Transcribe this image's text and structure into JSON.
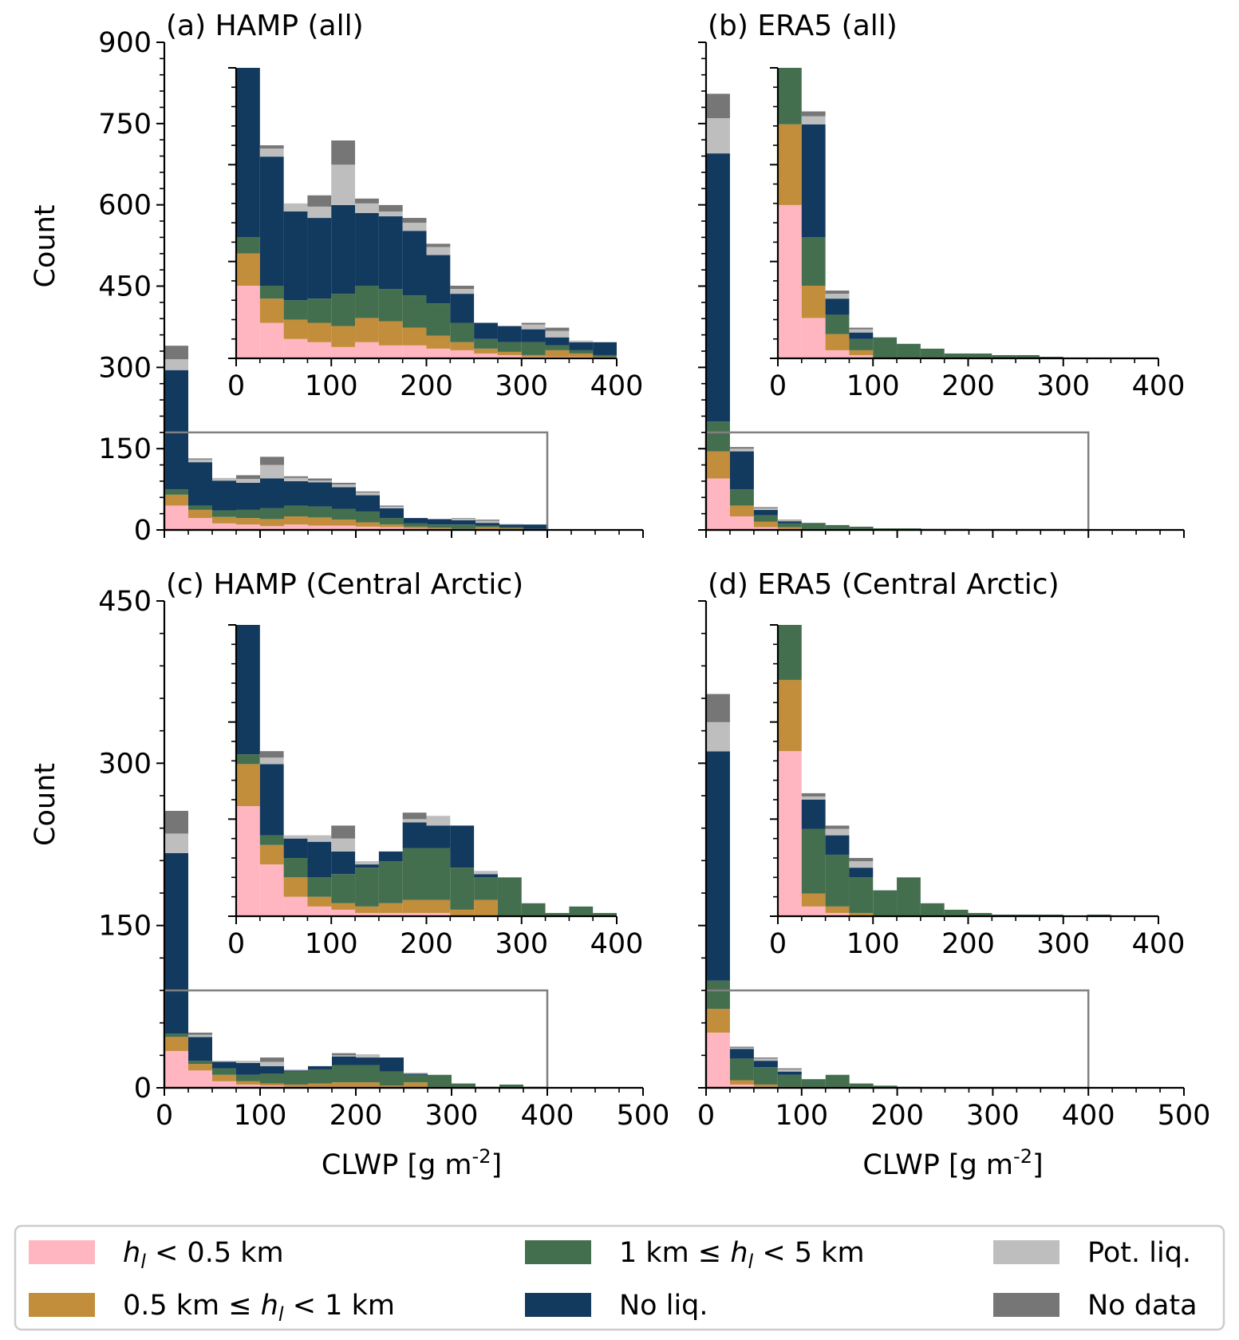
{
  "colors": {
    "c0": "#FFB6C1",
    "c1": "#C28E3C",
    "c2": "#446F4E",
    "c3": "#12395E",
    "c4": "#BEBEBE",
    "c5": "#767676",
    "zoom_box": "#808080"
  },
  "legend": {
    "entries": [
      {
        "key": "c0",
        "parts": [
          {
            "t": "h",
            "i": true
          },
          {
            "t": "l",
            "sub": true,
            "i": true
          },
          {
            "t": " < 0.5 km"
          }
        ]
      },
      {
        "key": "c1",
        "parts": [
          {
            "t": "0.5 km ≤ "
          },
          {
            "t": "h",
            "i": true
          },
          {
            "t": "l",
            "sub": true,
            "i": true
          },
          {
            "t": " < 1 km"
          }
        ]
      },
      {
        "key": "c2",
        "parts": [
          {
            "t": "1 km ≤ "
          },
          {
            "t": "h",
            "i": true
          },
          {
            "t": "l",
            "sub": true,
            "i": true
          },
          {
            "t": " < 5 km"
          }
        ]
      },
      {
        "key": "c3",
        "parts": [
          {
            "t": "No liq."
          }
        ]
      },
      {
        "key": "c4",
        "parts": [
          {
            "t": "Pot. liq."
          }
        ]
      },
      {
        "key": "c5",
        "parts": [
          {
            "t": "No data"
          }
        ]
      }
    ]
  },
  "chart_data": [
    {
      "type": "bar",
      "stacked": true,
      "title": "(a) HAMP (all)",
      "ylabel": "Count",
      "xlabel": "",
      "xlim": [
        0,
        500
      ],
      "ylim": [
        0,
        900
      ],
      "xticks": [
        0,
        100,
        200,
        300,
        400,
        500
      ],
      "yticks": [
        0,
        150,
        300,
        450,
        600,
        750,
        900
      ],
      "bin_width": 25,
      "series_keys": [
        "c0",
        "c1",
        "c2",
        "c3",
        "c4",
        "c5"
      ],
      "series_names": [
        "h_l < 0.5 km",
        "0.5 km ≤ h_l < 1 km",
        "1 km ≤ h_l < 5 km",
        "No liq.",
        "Pot. liq.",
        "No data"
      ],
      "bins": [
        [
          45,
          20,
          10,
          220,
          20,
          25
        ],
        [
          22,
          15,
          8,
          80,
          5,
          2
        ],
        [
          12,
          12,
          12,
          55,
          5,
          0
        ],
        [
          10,
          12,
          15,
          50,
          7,
          7
        ],
        [
          7,
          13,
          20,
          55,
          25,
          15
        ],
        [
          10,
          15,
          20,
          45,
          6,
          3
        ],
        [
          8,
          15,
          20,
          45,
          3,
          4
        ],
        [
          8,
          11,
          20,
          40,
          5,
          3
        ],
        [
          6,
          8,
          20,
          30,
          5,
          2
        ],
        [
          5,
          5,
          12,
          18,
          3,
          2
        ],
        [
          3,
          3,
          6,
          10,
          0,
          0
        ],
        [
          2,
          2,
          6,
          10,
          0,
          0
        ],
        [
          1,
          1,
          8,
          8,
          3,
          1
        ],
        [
          1,
          4,
          3,
          5,
          4,
          2
        ],
        [
          1,
          2,
          2,
          5,
          1,
          0
        ],
        [
          0,
          1,
          1,
          8,
          0,
          0
        ],
        [
          0,
          0,
          0,
          0,
          0,
          0
        ]
      ],
      "zoom_box": {
        "x": [
          0,
          400
        ],
        "y": [
          0,
          180
        ]
      },
      "inset": {
        "xlim": [
          0,
          400
        ],
        "ylim": [
          0,
          180
        ],
        "xticks": [
          0,
          100,
          200,
          300,
          400
        ],
        "yticks": [
          0,
          60,
          120,
          180
        ],
        "show_ytick_labels": false
      }
    },
    {
      "type": "bar",
      "stacked": true,
      "title": "(b) ERA5 (all)",
      "ylabel": "",
      "xlabel": "",
      "xlim": [
        0,
        500
      ],
      "ylim": [
        0,
        900
      ],
      "xticks": [
        0,
        100,
        200,
        300,
        400,
        500
      ],
      "yticks": [
        0,
        150,
        300,
        450,
        600,
        750,
        900
      ],
      "show_ytick_labels": false,
      "bin_width": 25,
      "series_keys": [
        "c0",
        "c1",
        "c2",
        "c3",
        "c4",
        "c5"
      ],
      "series_names": [
        "h_l < 0.5 km",
        "0.5 km ≤ h_l < 1 km",
        "1 km ≤ h_l < 5 km",
        "No liq.",
        "Pot. liq.",
        "No data"
      ],
      "bins": [
        [
          95,
          50,
          55,
          495,
          65,
          45
        ],
        [
          25,
          20,
          30,
          70,
          5,
          3
        ],
        [
          5,
          10,
          12,
          10,
          3,
          2
        ],
        [
          2,
          3,
          7,
          4,
          2,
          1
        ],
        [
          0,
          0,
          13,
          0,
          0,
          0
        ],
        [
          0,
          0,
          9,
          0,
          0,
          0
        ],
        [
          0,
          0,
          6,
          0,
          0,
          0
        ],
        [
          0,
          0,
          3,
          0,
          0,
          0
        ],
        [
          0,
          0,
          3,
          0,
          0,
          0
        ],
        [
          0,
          0,
          2,
          0,
          0,
          0
        ],
        [
          0,
          0,
          2,
          0,
          0,
          0
        ],
        [
          0,
          0,
          1,
          0,
          0,
          0
        ],
        [
          0,
          0,
          0,
          0,
          0,
          0
        ],
        [
          0,
          0,
          0.5,
          0,
          0,
          0
        ],
        [
          0,
          0,
          0,
          0,
          0,
          0
        ],
        [
          0,
          0,
          0,
          0,
          0,
          0
        ],
        [
          0,
          0,
          0,
          0,
          0,
          0
        ]
      ],
      "zoom_box": {
        "x": [
          0,
          400
        ],
        "y": [
          0,
          180
        ]
      },
      "inset": {
        "xlim": [
          0,
          400
        ],
        "ylim": [
          0,
          180
        ],
        "xticks": [
          0,
          100,
          200,
          300,
          400
        ],
        "yticks": [
          0,
          60,
          120,
          180
        ],
        "show_ytick_labels": false
      }
    },
    {
      "type": "bar",
      "stacked": true,
      "title": "(c) HAMP (Central Arctic)",
      "ylabel": "Count",
      "xlabel": "CLWP [g m^-2]",
      "xlim": [
        0,
        500
      ],
      "ylim": [
        0,
        450
      ],
      "xticks": [
        0,
        100,
        200,
        300,
        400,
        500
      ],
      "yticks": [
        0,
        150,
        300,
        450
      ],
      "bin_width": 25,
      "series_keys": [
        "c0",
        "c1",
        "c2",
        "c3",
        "c4",
        "c5"
      ],
      "series_names": [
        "h_l < 0.5 km",
        "0.5 km ≤ h_l < 1 km",
        "1 km ≤ h_l < 5 km",
        "No liq.",
        "Pot. liq.",
        "No data"
      ],
      "bins": [
        [
          34,
          13,
          3,
          167,
          18,
          21
        ],
        [
          16,
          6,
          3,
          22,
          2,
          2
        ],
        [
          6,
          6,
          6,
          6,
          1,
          0
        ],
        [
          3,
          3,
          6,
          11,
          2,
          0
        ],
        [
          2,
          2,
          9,
          7,
          4,
          4
        ],
        [
          1,
          2,
          12,
          1,
          1,
          0
        ],
        [
          1,
          3,
          13,
          3,
          0,
          0
        ],
        [
          1,
          4,
          16,
          8,
          1,
          2
        ],
        [
          1,
          4,
          16,
          7,
          3,
          0
        ],
        [
          0,
          2,
          13,
          13,
          0,
          0
        ],
        [
          0,
          5,
          7,
          1,
          1,
          0
        ],
        [
          0,
          0,
          12,
          0,
          0,
          0
        ],
        [
          0,
          0,
          4,
          0,
          0,
          0
        ],
        [
          0,
          0,
          1,
          0,
          0,
          0
        ],
        [
          0,
          0,
          3,
          0,
          0,
          0
        ],
        [
          0,
          0,
          1,
          0,
          0,
          0
        ],
        [
          0,
          0,
          0.5,
          0,
          0,
          0
        ]
      ],
      "zoom_box": {
        "x": [
          0,
          400
        ],
        "y": [
          0,
          90
        ]
      },
      "inset": {
        "xlim": [
          0,
          400
        ],
        "ylim": [
          0,
          90
        ],
        "xticks": [
          0,
          100,
          200,
          300,
          400
        ],
        "yticks": [
          0,
          30,
          60,
          90
        ],
        "show_ytick_labels": false
      }
    },
    {
      "type": "bar",
      "stacked": true,
      "title": "(d) ERA5 (Central Arctic)",
      "ylabel": "",
      "xlabel": "CLWP [g m^-2]",
      "xlim": [
        0,
        500
      ],
      "ylim": [
        0,
        450
      ],
      "xticks": [
        0,
        100,
        200,
        300,
        400,
        500
      ],
      "yticks": [
        0,
        150,
        300,
        450
      ],
      "show_ytick_labels": false,
      "bin_width": 25,
      "series_keys": [
        "c0",
        "c1",
        "c2",
        "c3",
        "c4",
        "c5"
      ],
      "series_names": [
        "h_l < 0.5 km",
        "0.5 km ≤ h_l < 1 km",
        "1 km ≤ h_l < 5 km",
        "No liq.",
        "Pot. liq.",
        "No data"
      ],
      "bins": [
        [
          51,
          22,
          26,
          212,
          27,
          26
        ],
        [
          3,
          4,
          20,
          9,
          1,
          1
        ],
        [
          1,
          2,
          16,
          6,
          2,
          1
        ],
        [
          0,
          1,
          11,
          3,
          2,
          1
        ],
        [
          0,
          0,
          8,
          0,
          0,
          0
        ],
        [
          0,
          0,
          12,
          0,
          0,
          0
        ],
        [
          0,
          0,
          4,
          0,
          0,
          0
        ],
        [
          0,
          0,
          2,
          0,
          0,
          0
        ],
        [
          0,
          0,
          1,
          0,
          0,
          0
        ],
        [
          0,
          0,
          0.5,
          0,
          0,
          0
        ],
        [
          0,
          0,
          0.5,
          0,
          0,
          0
        ],
        [
          0,
          0,
          0.5,
          0,
          0,
          0
        ],
        [
          0,
          0,
          0,
          0,
          0,
          0
        ],
        [
          0,
          0,
          0.5,
          0,
          0,
          0
        ],
        [
          0,
          0,
          0,
          0,
          0,
          0
        ],
        [
          0,
          0,
          0,
          0,
          0,
          0
        ],
        [
          0,
          0,
          0,
          0,
          0,
          0
        ]
      ],
      "zoom_box": {
        "x": [
          0,
          400
        ],
        "y": [
          0,
          90
        ]
      },
      "inset": {
        "xlim": [
          0,
          400
        ],
        "ylim": [
          0,
          90
        ],
        "xticks": [
          0,
          100,
          200,
          300,
          400
        ],
        "yticks": [
          0,
          30,
          60,
          90
        ],
        "show_ytick_labels": false
      }
    }
  ]
}
